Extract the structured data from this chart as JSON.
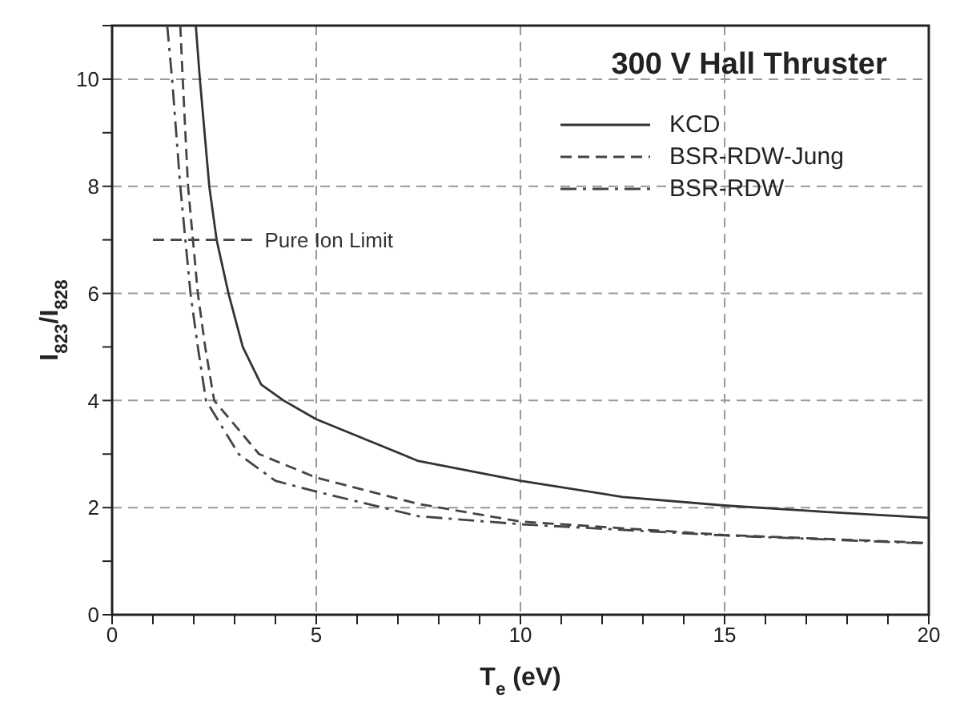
{
  "chart_data": {
    "type": "line",
    "title": "300 V Hall Thruster",
    "xlabel": "T$_{e}$ (eV)",
    "ylabel": "I$_{823}$/I$_{828}$",
    "xlim": [
      0,
      20
    ],
    "ylim": [
      0,
      11
    ],
    "xticks": [
      0,
      {
        "value": 1,
        "label": null
      },
      {
        "value": 2,
        "label": null
      },
      {
        "value": 3,
        "label": null
      },
      {
        "value": 4,
        "label": null
      },
      5,
      {
        "value": 6,
        "label": null
      },
      {
        "value": 7,
        "label": null
      },
      {
        "value": 8,
        "label": null
      },
      {
        "value": 9,
        "label": null
      },
      10,
      {
        "value": 11,
        "label": null
      },
      {
        "value": 12,
        "label": null
      },
      {
        "value": 13,
        "label": null
      },
      {
        "value": 14,
        "label": null
      },
      15,
      {
        "value": 16,
        "label": null
      },
      {
        "value": 17,
        "label": null
      },
      {
        "value": 18,
        "label": null
      },
      {
        "value": 19,
        "label": null
      },
      20
    ],
    "yticks": [
      0,
      {
        "value": 1,
        "label": null
      },
      2,
      {
        "value": 3,
        "label": null
      },
      4,
      {
        "value": 5,
        "label": null
      },
      6,
      {
        "value": 7,
        "label": null
      },
      8,
      {
        "value": 9,
        "label": null
      },
      10,
      {
        "value": 11,
        "label": null
      }
    ],
    "grid": true,
    "legend": "top right",
    "marker": "none",
    "series": [
      {
        "name": "KCD",
        "color": "#333333",
        "line_style": "solid",
        "x": [
          2.05,
          2.15,
          2.38,
          2.56,
          2.85,
          3.2,
          3.65,
          4.2,
          5,
          7.5,
          10,
          12.5,
          15,
          17.5,
          20
        ],
        "values": [
          11,
          10,
          8,
          7,
          6,
          5,
          4.3,
          4,
          3.65,
          2.87,
          2.5,
          2.2,
          2.04,
          1.92,
          1.81
        ]
      },
      {
        "name": "BSR-RDW-Jung",
        "color": "#444444",
        "line_style": "dashed",
        "x": [
          1.67,
          1.73,
          1.86,
          2.1,
          2.28,
          2.5,
          3.6,
          5,
          7.5,
          10,
          15,
          20
        ],
        "values": [
          11,
          10,
          8,
          6,
          5,
          4,
          3,
          2.56,
          2.07,
          1.74,
          1.49,
          1.34
        ]
      },
      {
        "name": "BSR-RDW",
        "color": "#444444",
        "line_style": "dashdot",
        "x": [
          1.35,
          1.47,
          1.67,
          1.92,
          2.1,
          2.3,
          3.1,
          4,
          5,
          7.5,
          10,
          15,
          20
        ],
        "values": [
          11,
          10,
          8,
          6,
          5,
          4,
          3,
          2.5,
          2.3,
          1.84,
          1.69,
          1.48,
          1.33
        ]
      },
      {
        "color": "#444444",
        "line_style": "dashed",
        "x": [
          1,
          3.5
        ],
        "values": [
          7,
          7
        ]
      }
    ],
    "annotations": [
      "Pure Ion Limit"
    ]
  }
}
